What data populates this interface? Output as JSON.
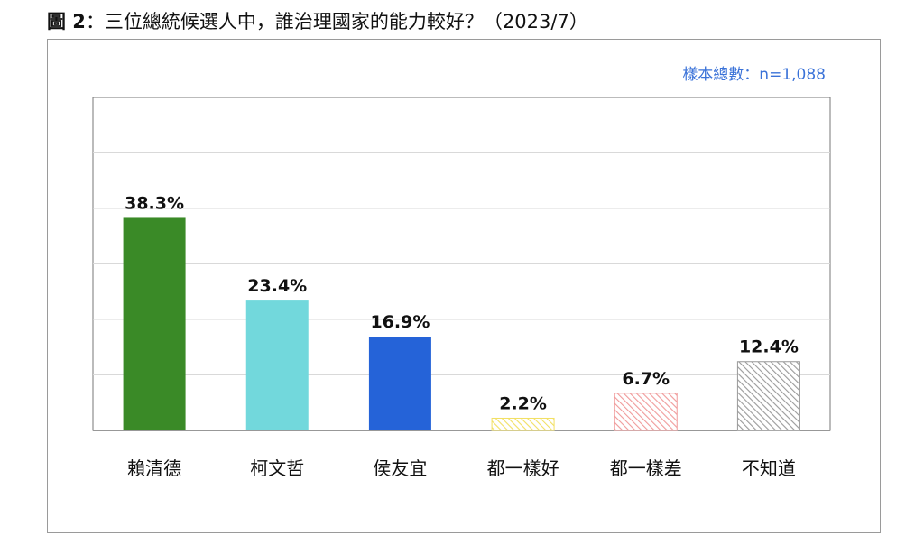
{
  "figure": {
    "prefix": "圖 2",
    "title": "：三位總統候選人中，誰治理國家的能力較好？（2023/7）"
  },
  "sample_note": "樣本總數：n=1,088",
  "chart_data": {
    "type": "bar",
    "title": "圖 2：三位總統候選人中，誰治理國家的能力較好？（2023/7）",
    "categories": [
      "賴清德",
      "柯文哲",
      "侯友宜",
      "都一樣好",
      "都一樣差",
      "不知道"
    ],
    "values": [
      38.3,
      23.4,
      16.9,
      2.2,
      6.7,
      12.4
    ],
    "value_labels": [
      "38.3%",
      "23.4%",
      "16.9%",
      "2.2%",
      "6.7%",
      "12.4%"
    ],
    "colors": [
      "#3a8a27",
      "#72d8dc",
      "#2563d8",
      "#f2e062",
      "#f09a9a",
      "#9a9a9a"
    ],
    "fills": [
      "solid",
      "solid",
      "solid",
      "hatched",
      "hatched",
      "hatched"
    ],
    "ylim": [
      0,
      60
    ],
    "gridlines": [
      10,
      20,
      30,
      40,
      50
    ],
    "grid": true,
    "legend": "none",
    "xlabel": "",
    "ylabel": ""
  }
}
